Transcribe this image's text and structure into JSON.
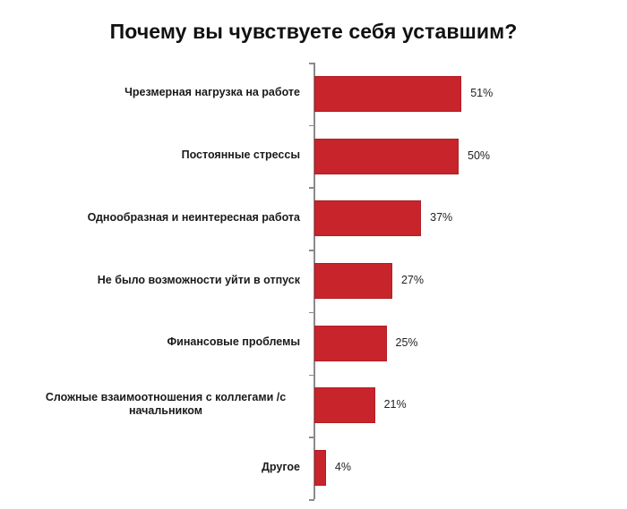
{
  "title": "Почему вы чувствуете себя уставшим?",
  "colors": {
    "bar": "#C8242B",
    "axis": "#8a8a8a",
    "text": "#1a1a1a"
  },
  "chart_data": {
    "type": "bar",
    "orientation": "horizontal",
    "title": "Почему вы чувствуете себя уставшим?",
    "xlabel": "",
    "ylabel": "",
    "grid": false,
    "legend": null,
    "categories": [
      "Чрезмерная нагрузка на работе",
      "Постоянные стрессы",
      "Однообразная и неинтересная работа",
      "Не было возможности уйти в отпуск",
      "Финансовые проблемы",
      "Сложные взаимоотношения с коллегами /с начальником",
      "Другое"
    ],
    "values": [
      51,
      50,
      37,
      27,
      25,
      21,
      4
    ],
    "value_labels": [
      "51%",
      "50%",
      "37%",
      "27%",
      "25%",
      "21%",
      "4%"
    ],
    "unit": "%"
  },
  "rows": [
    {
      "label": "Чрезмерная нагрузка на работе",
      "value": 51,
      "value_label": "51%"
    },
    {
      "label": "Постоянные стрессы",
      "value": 50,
      "value_label": "50%"
    },
    {
      "label": "Однообразная и неинтересная работа",
      "value": 37,
      "value_label": "37%"
    },
    {
      "label": "Не было возможности  уйти в отпуск",
      "value": 27,
      "value_label": "27%"
    },
    {
      "label": "Финансовые  проблемы",
      "value": 25,
      "value_label": "25%"
    },
    {
      "label": "Сложные взаимоотношения  с коллегами  /с\nначальником",
      "value": 21,
      "value_label": "21%"
    },
    {
      "label": "Другое",
      "value": 4,
      "value_label": "4%"
    }
  ]
}
